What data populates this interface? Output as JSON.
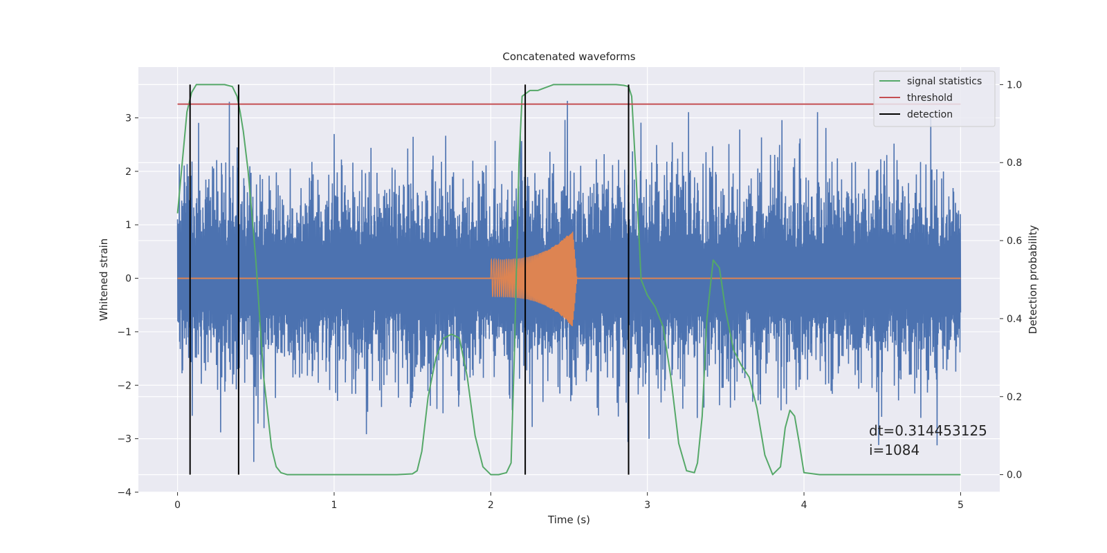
{
  "chart_data": {
    "type": "line",
    "title": "Concatenated waveforms",
    "xlabel": "Time (s)",
    "ylabel": "Whitened strain",
    "y2label": "Detection probability",
    "xlim": [
      -0.25,
      5.25
    ],
    "ylim": [
      -4.0,
      3.95
    ],
    "y2lim": [
      -0.045,
      1.045
    ],
    "xticks": [
      0,
      1,
      2,
      3,
      4,
      5
    ],
    "yticks": [
      -4,
      -3,
      -2,
      -1,
      0,
      1,
      2,
      3
    ],
    "y2ticks": [
      0.0,
      0.2,
      0.4,
      0.6,
      0.8,
      1.0
    ],
    "grid": true,
    "background": "#eaeaf2",
    "legend_position": "top-right",
    "annotation": "dt=0.314453125\n i=1084",
    "series": [
      {
        "name": "",
        "kind": "noise",
        "color": "#4c72b0",
        "axis": "left",
        "x_range": [
          0,
          5
        ],
        "approx_envelope": [
          -3.7,
          3.6
        ]
      },
      {
        "name": "",
        "kind": "chirp",
        "color": "#dd8452",
        "axis": "left",
        "x_range": [
          2.0,
          2.55
        ],
        "start_amplitude": 0.35,
        "peak_amplitude": 1.0
      },
      {
        "name": "signal statistics",
        "color": "#55a868",
        "axis": "right",
        "x": [
          0.0,
          0.03,
          0.06,
          0.09,
          0.12,
          0.15,
          0.2,
          0.3,
          0.35,
          0.38,
          0.4,
          0.42,
          0.45,
          0.5,
          0.55,
          0.6,
          0.63,
          0.66,
          0.7,
          0.8,
          1.0,
          1.2,
          1.4,
          1.5,
          1.53,
          1.56,
          1.6,
          1.65,
          1.7,
          1.75,
          1.8,
          1.85,
          1.9,
          1.95,
          2.0,
          2.05,
          2.1,
          2.13,
          2.15,
          2.18,
          2.2,
          2.25,
          2.3,
          2.4,
          2.45,
          2.5,
          2.6,
          2.7,
          2.8,
          2.85,
          2.88,
          2.9,
          2.93,
          2.96,
          3.0,
          3.05,
          3.1,
          3.15,
          3.2,
          3.25,
          3.3,
          3.32,
          3.35,
          3.38,
          3.42,
          3.46,
          3.5,
          3.55,
          3.6,
          3.65,
          3.7,
          3.75,
          3.8,
          3.85,
          3.88,
          3.91,
          3.94,
          3.97,
          4.0,
          4.1,
          4.5,
          5.0
        ],
        "values": [
          0.67,
          0.8,
          0.93,
          0.98,
          1.0,
          1.0,
          1.0,
          1.0,
          0.995,
          0.97,
          0.93,
          0.88,
          0.78,
          0.55,
          0.25,
          0.07,
          0.02,
          0.005,
          0.0,
          0.0,
          0.0,
          0.0,
          0.0,
          0.002,
          0.01,
          0.06,
          0.2,
          0.3,
          0.35,
          0.36,
          0.35,
          0.25,
          0.1,
          0.02,
          0.0,
          0.0,
          0.005,
          0.03,
          0.3,
          0.8,
          0.97,
          0.985,
          0.985,
          1.0,
          1.0,
          1.0,
          1.0,
          1.0,
          1.0,
          0.998,
          0.995,
          0.97,
          0.75,
          0.5,
          0.46,
          0.43,
          0.38,
          0.25,
          0.08,
          0.01,
          0.005,
          0.03,
          0.15,
          0.4,
          0.55,
          0.53,
          0.42,
          0.32,
          0.28,
          0.25,
          0.17,
          0.05,
          0.0,
          0.02,
          0.12,
          0.165,
          0.15,
          0.08,
          0.005,
          0.0,
          0.0,
          0.0
        ]
      },
      {
        "name": "threshold",
        "color": "#c44e52",
        "axis": "right",
        "x": [
          0,
          5
        ],
        "values": [
          0.95,
          0.95
        ]
      },
      {
        "name": "detection",
        "color": "#000000",
        "axis": "right",
        "kind": "vlines",
        "x": [
          0.08,
          0.39,
          2.22,
          2.88
        ],
        "y_range": [
          0,
          1
        ]
      }
    ]
  }
}
